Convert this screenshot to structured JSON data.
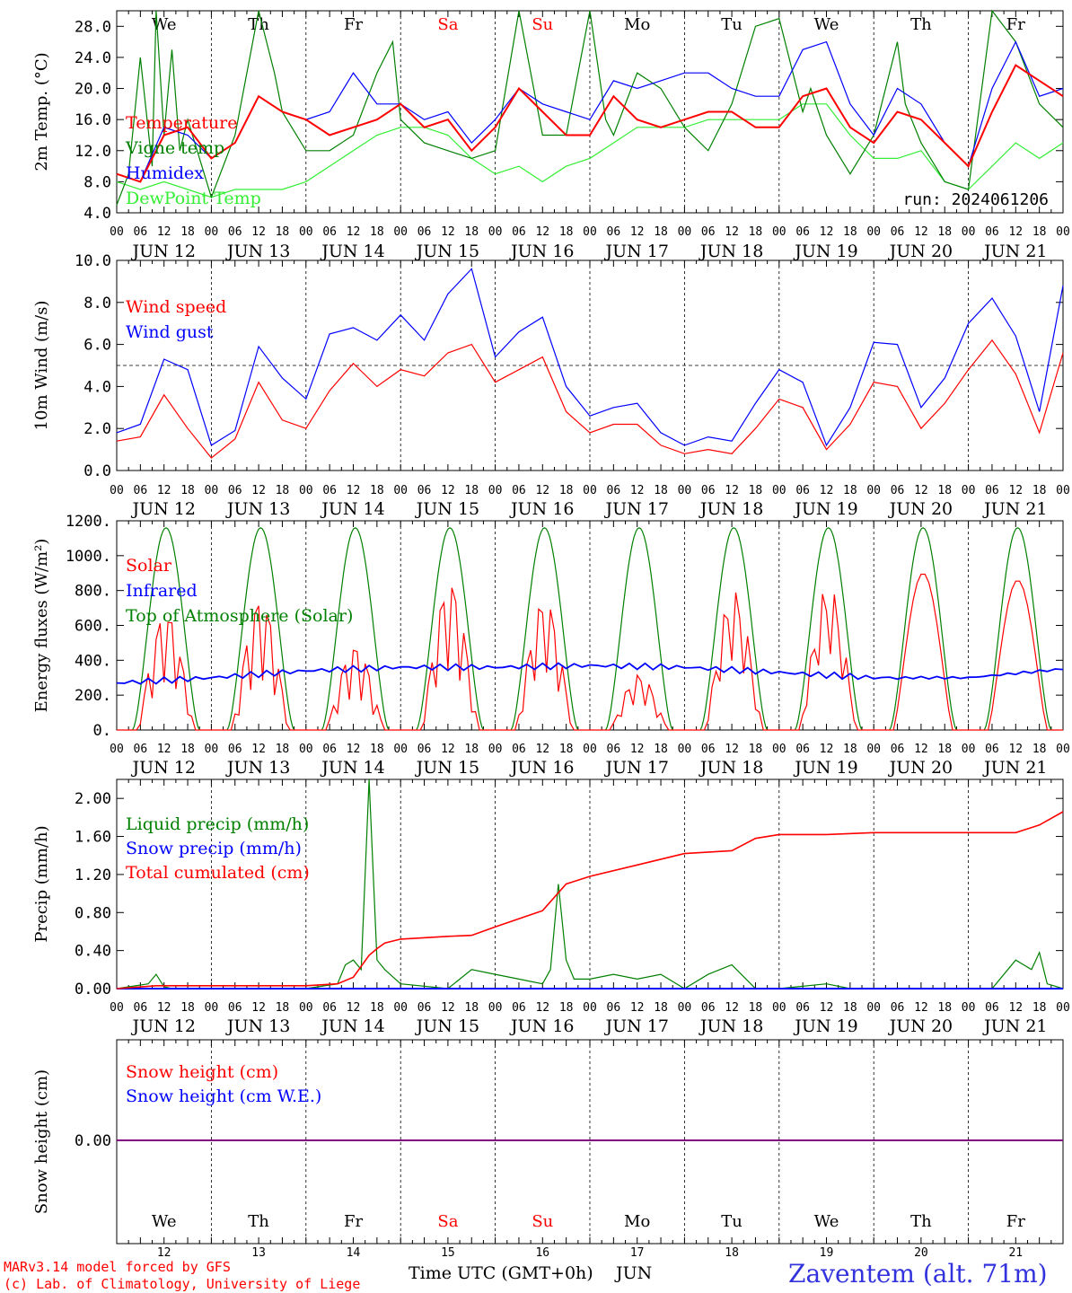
{
  "colors": {
    "red": "#ff0000",
    "green": "#008000",
    "blue": "#0000ff",
    "lightgreen": "#33ee33",
    "purple": "#800080",
    "frame": "#000000"
  },
  "days": [
    {
      "abbr": "We",
      "weekend": false,
      "date": "JUN 12",
      "num": "12"
    },
    {
      "abbr": "Th",
      "weekend": false,
      "date": "JUN 13",
      "num": "13"
    },
    {
      "abbr": "Fr",
      "weekend": false,
      "date": "JUN 14",
      "num": "14"
    },
    {
      "abbr": "Sa",
      "weekend": true,
      "date": "JUN 15",
      "num": "15"
    },
    {
      "abbr": "Su",
      "weekend": true,
      "date": "JUN 16",
      "num": "16"
    },
    {
      "abbr": "Mo",
      "weekend": false,
      "date": "JUN 17",
      "num": "17"
    },
    {
      "abbr": "Tu",
      "weekend": false,
      "date": "JUN 18",
      "num": "18"
    },
    {
      "abbr": "We",
      "weekend": false,
      "date": "JUN 19",
      "num": "19"
    },
    {
      "abbr": "Th",
      "weekend": false,
      "date": "JUN 20",
      "num": "20"
    },
    {
      "abbr": "Fr",
      "weekend": false,
      "date": "JUN 21",
      "num": "21"
    }
  ],
  "hour_ticks": [
    "00",
    "06",
    "12",
    "18"
  ],
  "final_tick": "00",
  "footer": {
    "model": "MARv3.14 model forced by GFS",
    "credit": "(c) Lab. of Climatology, University of Liege",
    "xlabel": "Time UTC (GMT+0h)",
    "month": "JUN",
    "station": "Zaventem (alt. 71m)"
  },
  "chart_data": [
    {
      "type": "line",
      "ylabel": "2m Temp. (°C)",
      "ylim": [
        4,
        30
      ],
      "yticks": [
        "4.0",
        "8.0",
        "12.0",
        "16.0",
        "20.0",
        "24.0",
        "28.0"
      ],
      "run_label": "run: 2024061206",
      "x_unit": "hours since JUN 12 00 UTC",
      "series": [
        {
          "name": "Temperature",
          "color": "red",
          "x": [
            0,
            6,
            12,
            18,
            24,
            30,
            36,
            42,
            48,
            54,
            60,
            66,
            72,
            78,
            84,
            90,
            96,
            102,
            108,
            114,
            120,
            126,
            132,
            138,
            144,
            150,
            156,
            162,
            168,
            174,
            180,
            186,
            192,
            198,
            204,
            210,
            216,
            222,
            228,
            234,
            240
          ],
          "y": [
            9,
            8,
            14,
            15,
            11,
            13,
            19,
            17,
            16,
            14,
            15,
            16,
            18,
            15,
            16,
            12,
            15,
            20,
            17,
            14,
            14,
            19,
            16,
            15,
            16,
            17,
            17,
            15,
            15,
            19,
            20,
            15,
            13,
            17,
            16,
            13,
            10,
            17,
            23,
            21,
            19
          ]
        },
        {
          "name": "Vigne temp",
          "color": "green",
          "x": [
            0,
            3,
            6,
            9,
            10,
            12,
            14,
            16,
            18,
            24,
            30,
            36,
            40,
            42,
            48,
            54,
            60,
            66,
            70,
            72,
            78,
            84,
            90,
            96,
            102,
            108,
            114,
            120,
            124,
            126,
            132,
            138,
            144,
            150,
            156,
            162,
            168,
            174,
            176,
            180,
            186,
            192,
            198,
            200,
            204,
            210,
            216,
            222,
            228,
            234,
            240
          ],
          "y": [
            5,
            9,
            24,
            10,
            30,
            14,
            25,
            12,
            16,
            6,
            14,
            30,
            22,
            17,
            12,
            12,
            14,
            22,
            26,
            16,
            13,
            12,
            11,
            12,
            30,
            14,
            14,
            30,
            16,
            14,
            22,
            20,
            15,
            12,
            18,
            28,
            29,
            17,
            20,
            14,
            9,
            14,
            26,
            18,
            13,
            8,
            7,
            30,
            26,
            18,
            15
          ]
        },
        {
          "name": "Humidex",
          "color": "blue",
          "x": [
            0,
            6,
            12,
            18,
            24,
            30,
            36,
            42,
            48,
            54,
            60,
            66,
            72,
            78,
            84,
            90,
            96,
            102,
            108,
            114,
            120,
            126,
            132,
            138,
            144,
            150,
            156,
            162,
            168,
            174,
            180,
            186,
            192,
            198,
            204,
            210,
            216,
            222,
            228,
            234,
            240
          ],
          "y": [
            9,
            8,
            15,
            14,
            11,
            13,
            19,
            17,
            16,
            17,
            22,
            18,
            18,
            16,
            17,
            13,
            16,
            20,
            18,
            17,
            16,
            21,
            20,
            21,
            22,
            22,
            20,
            19,
            19,
            25,
            26,
            18,
            14,
            20,
            18,
            13,
            10,
            20,
            26,
            19,
            20
          ]
        },
        {
          "name": "DewPoint Temp",
          "color": "lightgreen",
          "x": [
            0,
            6,
            12,
            18,
            24,
            30,
            36,
            42,
            48,
            54,
            60,
            66,
            72,
            78,
            84,
            90,
            96,
            102,
            108,
            114,
            120,
            126,
            132,
            138,
            144,
            150,
            156,
            162,
            168,
            174,
            180,
            186,
            192,
            198,
            204,
            210,
            216,
            222,
            228,
            234,
            240
          ],
          "y": [
            8,
            7,
            8,
            7,
            6,
            7,
            7,
            7,
            8,
            10,
            12,
            14,
            15,
            15,
            14,
            11,
            9,
            10,
            8,
            10,
            11,
            13,
            15,
            15,
            15,
            16,
            16,
            16,
            16,
            18,
            18,
            14,
            11,
            11,
            12,
            8,
            7,
            10,
            13,
            11,
            13
          ]
        }
      ]
    },
    {
      "type": "line",
      "ylabel": "10m Wind (m/s)",
      "ylim": [
        0,
        10
      ],
      "yticks": [
        "0.0",
        "2.0",
        "4.0",
        "6.0",
        "8.0",
        "10.0"
      ],
      "reference_line": 5.0,
      "series": [
        {
          "name": "Wind speed",
          "color": "red",
          "x": [
            0,
            6,
            12,
            18,
            24,
            30,
            36,
            42,
            48,
            54,
            60,
            66,
            72,
            78,
            84,
            90,
            96,
            102,
            108,
            114,
            120,
            126,
            132,
            138,
            144,
            150,
            156,
            162,
            168,
            174,
            180,
            186,
            192,
            198,
            204,
            210,
            216,
            222,
            228,
            234,
            240
          ],
          "y": [
            1.4,
            1.6,
            3.6,
            2.0,
            0.6,
            1.5,
            4.2,
            2.4,
            2.0,
            3.8,
            5.1,
            4.0,
            4.8,
            4.5,
            5.6,
            6.0,
            4.2,
            4.8,
            5.4,
            2.8,
            1.8,
            2.2,
            2.2,
            1.2,
            0.8,
            1.0,
            0.8,
            2.0,
            3.4,
            3.0,
            1.0,
            2.2,
            4.2,
            4.0,
            2.0,
            3.2,
            4.8,
            6.2,
            4.6,
            1.8,
            5.6
          ]
        },
        {
          "name": "Wind gust",
          "color": "blue",
          "x": [
            0,
            6,
            12,
            18,
            24,
            30,
            36,
            42,
            48,
            54,
            60,
            66,
            72,
            78,
            84,
            90,
            96,
            102,
            108,
            114,
            120,
            126,
            132,
            138,
            144,
            150,
            156,
            162,
            168,
            174,
            180,
            186,
            192,
            198,
            204,
            210,
            216,
            222,
            228,
            234,
            240
          ],
          "y": [
            1.8,
            2.2,
            5.3,
            4.8,
            1.2,
            1.9,
            5.9,
            4.4,
            3.4,
            6.5,
            6.8,
            6.2,
            7.4,
            6.2,
            8.4,
            9.6,
            5.4,
            6.6,
            7.3,
            4.0,
            2.6,
            3.0,
            3.2,
            1.8,
            1.2,
            1.6,
            1.4,
            3.2,
            4.8,
            4.2,
            1.2,
            3.0,
            6.1,
            6.0,
            3.0,
            4.4,
            7.0,
            8.2,
            6.4,
            2.8,
            8.8
          ]
        }
      ]
    },
    {
      "type": "line",
      "ylabel": "Energy fluxes (W/m²)",
      "ylim": [
        0,
        1200
      ],
      "yticks": [
        "0.",
        "200.",
        "400.",
        "600.",
        "800.",
        "1000.",
        "1200."
      ],
      "series": [
        {
          "name": "Solar",
          "color": "red",
          "peaks": [
            700,
            780,
            500,
            880,
            780,
            330,
            820,
            850,
            900,
            860
          ],
          "x_peak_hour": 13
        },
        {
          "name": "Infrared",
          "color": "blue",
          "x": [
            0,
            24,
            48,
            72,
            96,
            120,
            144,
            168,
            192,
            216,
            240
          ],
          "y": [
            270,
            300,
            340,
            360,
            360,
            370,
            360,
            330,
            300,
            300,
            350
          ]
        },
        {
          "name": "Top of Atmosphere (Solar)",
          "color": "green",
          "daily_max": 1160,
          "sunrise_hour": 4,
          "sunset_hour": 21
        }
      ]
    },
    {
      "type": "line",
      "ylabel": "Precip (mm/h)",
      "ylim": [
        0,
        2.2
      ],
      "yticks": [
        "0.00",
        "0.40",
        "0.80",
        "1.20",
        "1.60",
        "2.00"
      ],
      "series": [
        {
          "name": "Liquid precip (mm/h)",
          "color": "green",
          "x": [
            0,
            8,
            10,
            12,
            14,
            24,
            48,
            56,
            58,
            60,
            62,
            64,
            66,
            68,
            72,
            84,
            90,
            96,
            102,
            108,
            110,
            112,
            114,
            116,
            120,
            126,
            132,
            138,
            144,
            150,
            156,
            162,
            168,
            180,
            186,
            192,
            216,
            222,
            228,
            232,
            234,
            236,
            240
          ],
          "y": [
            0,
            0.05,
            0.15,
            0.02,
            0,
            0,
            0,
            0.05,
            0.25,
            0.3,
            0.2,
            2.2,
            0.3,
            0.2,
            0.05,
            0,
            0.2,
            0.15,
            0.1,
            0.05,
            0.2,
            1.1,
            0.3,
            0.1,
            0.1,
            0.15,
            0.1,
            0.15,
            0,
            0.15,
            0.25,
            0,
            0,
            0.05,
            0,
            0,
            0,
            0,
            0.3,
            0.2,
            0.38,
            0.05,
            0
          ]
        },
        {
          "name": "Snow precip (mm/h)",
          "color": "blue",
          "constant": 0.0
        },
        {
          "name": "Total cumulated (cm)",
          "color": "red",
          "x": [
            0,
            10,
            48,
            56,
            60,
            64,
            66,
            68,
            72,
            84,
            90,
            96,
            108,
            114,
            120,
            132,
            144,
            156,
            162,
            168,
            180,
            192,
            216,
            228,
            234,
            240
          ],
          "y": [
            0,
            0.03,
            0.03,
            0.05,
            0.12,
            0.35,
            0.42,
            0.48,
            0.52,
            0.55,
            0.56,
            0.65,
            0.82,
            1.1,
            1.18,
            1.3,
            1.42,
            1.45,
            1.58,
            1.62,
            1.62,
            1.64,
            1.64,
            1.64,
            1.72,
            1.86
          ]
        }
      ]
    },
    {
      "type": "line",
      "ylabel": "Snow height (cm)",
      "yticks": [
        "0.00"
      ],
      "series": [
        {
          "name": "Snow height (cm)",
          "color": "red",
          "constant": 0.0
        },
        {
          "name": "Snow height (cm W.E.)",
          "color": "blue",
          "constant": 0.0
        }
      ]
    }
  ]
}
